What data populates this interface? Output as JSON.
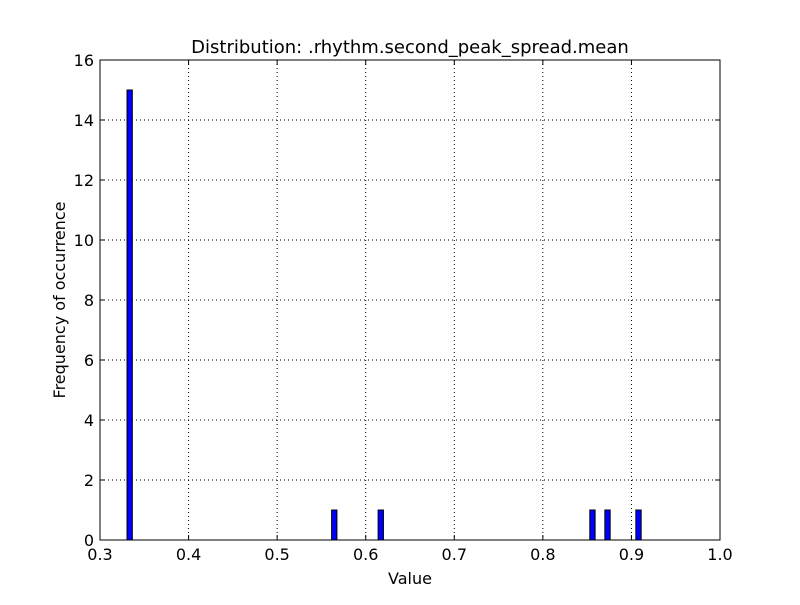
{
  "chart_data": {
    "type": "bar",
    "title": "Distribution: .rhythm.second_peak_spread.mean",
    "xlabel": "Value",
    "ylabel": "Frequency of occurrence",
    "xlim": [
      0.3,
      1.0
    ],
    "ylim": [
      0,
      16
    ],
    "x_ticks": [
      "0.3",
      "0.4",
      "0.5",
      "0.6",
      "0.7",
      "0.8",
      "0.9",
      "1.0"
    ],
    "y_ticks": [
      "0",
      "2",
      "4",
      "6",
      "8",
      "10",
      "12",
      "14",
      "16"
    ],
    "grid": true,
    "bar_color": "#0000ff",
    "bins": [
      {
        "start": 0.3305,
        "end": 0.3365,
        "count": 15
      },
      {
        "start": 0.5615,
        "end": 0.5675,
        "count": 1
      },
      {
        "start": 0.614,
        "end": 0.62,
        "count": 1
      },
      {
        "start": 0.853,
        "end": 0.859,
        "count": 1
      },
      {
        "start": 0.87,
        "end": 0.876,
        "count": 1
      },
      {
        "start": 0.905,
        "end": 0.911,
        "count": 1
      }
    ]
  }
}
